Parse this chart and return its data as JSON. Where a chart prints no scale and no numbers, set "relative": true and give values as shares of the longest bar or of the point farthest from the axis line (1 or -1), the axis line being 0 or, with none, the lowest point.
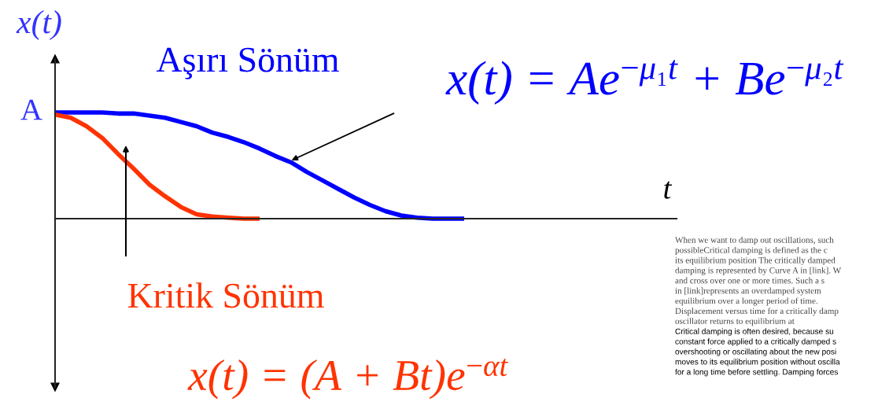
{
  "chart_data": {
    "type": "line",
    "relative": true,
    "ylabel": "x(t)",
    "categories": [
      null,
      null,
      null,
      null,
      null,
      null,
      null,
      null,
      null,
      null,
      null,
      null,
      null,
      null,
      null,
      null,
      null,
      null,
      null,
      null,
      null,
      null,
      null,
      null,
      null,
      null,
      null
    ],
    "series": [
      {
        "name": "Aşırı Sönüm",
        "color": "#0000ff",
        "values": [
          1.0,
          1.0,
          1.0,
          1.0,
          0.99,
          0.99,
          0.97,
          0.95,
          0.91,
          0.87,
          0.81,
          0.77,
          0.72,
          0.66,
          0.59,
          0.53,
          0.44,
          0.36,
          0.28,
          0.2,
          0.13,
          0.07,
          0.03,
          0.01,
          0,
          0,
          0
        ]
      },
      {
        "name": "Kritik Sönüm",
        "color": "#ff3300",
        "values": [
          0.98,
          0.95,
          0.87,
          0.76,
          0.61,
          0.47,
          0.32,
          0.21,
          0.11,
          0.04,
          0.02,
          0.01,
          0,
          0,
          null,
          null,
          null,
          null,
          null,
          null,
          null,
          null,
          null,
          null,
          null,
          null,
          null
        ]
      }
    ],
    "annotations": [
      "A",
      "t",
      "x(t) = Ae$^{−μ₁t}$ + Be$^{−μ₂t}$",
      "x(t) = (A + Bt)e$^{−αt}$",
      "When we want to damp out oscillations, such",
      "possibleCritical damping is defined as the c",
      "its equilibrium position The critically damped",
      "damping is represented by Curve A in [link]. W",
      "and cross over one or more times. Such a s",
      "in [link]represents an overdamped system",
      "equilibrium over a longer period of time.",
      "Displacement versus time for a critically damp",
      "oscillator returns to equilibrium at",
      "Critical damping is often desired, because su",
      "constant force applied to a critically damped s",
      "overshooting or oscillating about the new posi",
      "moves to its equilibrium position without oscilla",
      "for a long time before settling. Damping forces"
    ],
    "legend": false
  }
}
